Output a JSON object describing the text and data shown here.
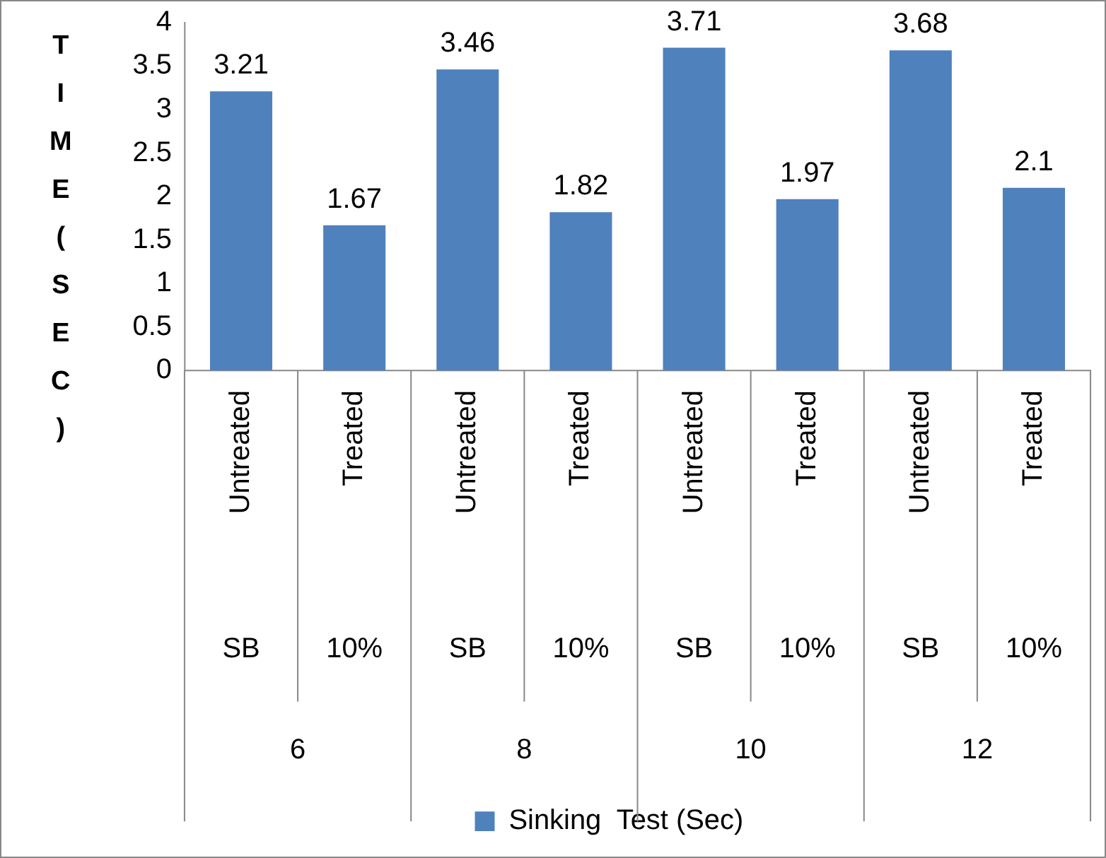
{
  "chart_data": {
    "type": "bar",
    "ylabel": "TIME (SEC)",
    "categories": [
      "Untreated",
      "Treated",
      "Untreated",
      "Treated",
      "Untreated",
      "Treated",
      "Untreated",
      "Treated"
    ],
    "series": [
      {
        "name": "Sinking  Test (Sec)",
        "color": "#4f81bd",
        "values": [
          3.21,
          1.67,
          3.46,
          1.82,
          3.71,
          1.97,
          3.68,
          2.1
        ]
      }
    ],
    "annotations": [
      "SB",
      "10%",
      "SB",
      "10%",
      "SB",
      "10%",
      "SB",
      "10%",
      "6",
      "8",
      "10",
      "12"
    ],
    "ylim": [
      0,
      4
    ],
    "yticks": [
      0,
      0.5,
      1,
      1.5,
      2,
      2.5,
      3,
      3.5,
      4
    ],
    "data_labels": true,
    "grid": false,
    "legend": "bottom"
  }
}
